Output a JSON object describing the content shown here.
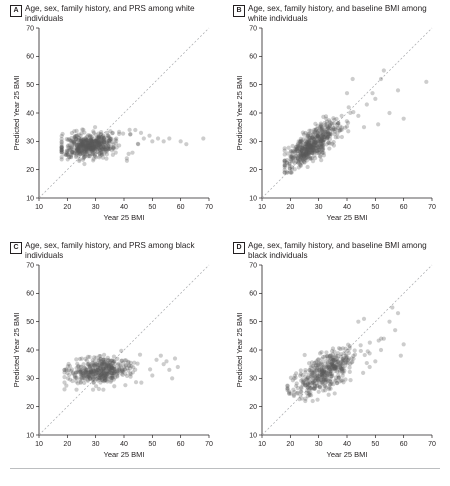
{
  "chart_data": [
    {
      "id": "A",
      "type": "scatter",
      "letter": "A",
      "title": "Age, sex, family history, and PRS among white individuals",
      "xlabel": "Year 25 BMI",
      "ylabel": "Predicted Year 25 BMI",
      "xlim": [
        10,
        70
      ],
      "ylim": [
        10,
        70
      ],
      "xticks": [
        10,
        20,
        30,
        40,
        50,
        60,
        70
      ],
      "yticks": [
        10,
        20,
        30,
        40,
        50,
        60,
        70
      ],
      "reference_line": "identity (y = x), dashed",
      "cloud": {
        "count": 520,
        "x_center": 28,
        "x_spread": 6,
        "x_min": 18,
        "x_max": 45,
        "y_center": 28.5,
        "y_slope": 0.12,
        "y_spread": 2.2,
        "y_min": 22,
        "y_max": 35
      },
      "points": [
        [
          47,
          31
        ],
        [
          50,
          30
        ],
        [
          52,
          31
        ],
        [
          56,
          31
        ],
        [
          60,
          30
        ],
        [
          62,
          29
        ],
        [
          68,
          31
        ],
        [
          44,
          34
        ],
        [
          46,
          33
        ],
        [
          49,
          32
        ],
        [
          54,
          30
        ],
        [
          41,
          24
        ],
        [
          43,
          26
        ],
        [
          45,
          29
        ]
      ]
    },
    {
      "id": "B",
      "type": "scatter",
      "letter": "B",
      "title": "Age, sex, family history, and baseline BMI among white individuals",
      "xlabel": "Year 25 BMI",
      "ylabel": "Predicted Year 25 BMI",
      "xlim": [
        10,
        70
      ],
      "ylim": [
        10,
        70
      ],
      "xticks": [
        10,
        20,
        30,
        40,
        50,
        60,
        70
      ],
      "yticks": [
        10,
        20,
        30,
        40,
        50,
        60,
        70
      ],
      "reference_line": "identity (y = x), dashed",
      "cloud": {
        "count": 520,
        "x_center": 28,
        "x_spread": 6,
        "x_min": 18,
        "x_max": 48,
        "y_center": 29,
        "y_slope": 0.7,
        "y_spread": 2.8,
        "y_min": 19,
        "y_max": 46
      },
      "points": [
        [
          53,
          55
        ],
        [
          52,
          52
        ],
        [
          58,
          48
        ],
        [
          60,
          38
        ],
        [
          68,
          51
        ],
        [
          42,
          52
        ],
        [
          49,
          47
        ],
        [
          50,
          45
        ],
        [
          55,
          40
        ],
        [
          47,
          43
        ],
        [
          44,
          39
        ],
        [
          51,
          36
        ],
        [
          46,
          35
        ],
        [
          40,
          47
        ]
      ]
    },
    {
      "id": "C",
      "type": "scatter",
      "letter": "C",
      "title": "Age, sex, family history, and PRS among black individuals",
      "xlabel": "Year 25 BMI",
      "ylabel": "Predicted Year 25 BMI",
      "xlim": [
        10,
        70
      ],
      "ylim": [
        10,
        70
      ],
      "xticks": [
        10,
        20,
        30,
        40,
        50,
        60,
        70
      ],
      "yticks": [
        10,
        20,
        30,
        40,
        50,
        60,
        70
      ],
      "reference_line": "identity (y = x), dashed",
      "cloud": {
        "count": 420,
        "x_center": 31,
        "x_spread": 7,
        "x_min": 19,
        "x_max": 52,
        "y_center": 32.5,
        "y_slope": 0.1,
        "y_spread": 2.3,
        "y_min": 26,
        "y_max": 40
      },
      "points": [
        [
          55,
          36
        ],
        [
          56,
          33
        ],
        [
          58,
          37
        ],
        [
          59,
          34
        ],
        [
          57,
          30
        ],
        [
          53,
          38
        ],
        [
          50,
          31
        ],
        [
          54,
          35
        ]
      ]
    },
    {
      "id": "D",
      "type": "scatter",
      "letter": "D",
      "title": "Age, sex, family history, and baseline BMI among black individuals",
      "xlabel": "Year 25 BMI",
      "ylabel": "Predicted Year 25 BMI",
      "xlim": [
        10,
        70
      ],
      "ylim": [
        10,
        70
      ],
      "xticks": [
        10,
        20,
        30,
        40,
        50,
        60,
        70
      ],
      "yticks": [
        10,
        20,
        30,
        40,
        50,
        60,
        70
      ],
      "reference_line": "identity (y = x), dashed",
      "cloud": {
        "count": 420,
        "x_center": 32,
        "x_spread": 7,
        "x_min": 19,
        "x_max": 55,
        "y_center": 32,
        "y_slope": 0.55,
        "y_spread": 3.2,
        "y_min": 22,
        "y_max": 52
      },
      "points": [
        [
          56,
          55
        ],
        [
          58,
          53
        ],
        [
          57,
          47
        ],
        [
          60,
          42
        ],
        [
          59,
          38
        ],
        [
          55,
          50
        ],
        [
          53,
          44
        ],
        [
          52,
          40
        ],
        [
          50,
          36
        ],
        [
          48,
          34
        ],
        [
          46,
          51
        ],
        [
          44,
          50
        ]
      ]
    }
  ]
}
